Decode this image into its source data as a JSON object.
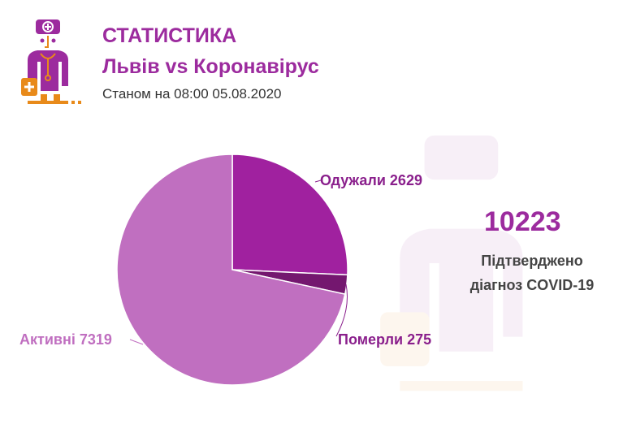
{
  "header": {
    "title": "СТАТИСТИКА",
    "subtitle": "Львів vs Коронавірус",
    "date": "Станом на 08:00 05.08.2020"
  },
  "summary": {
    "total": "10223",
    "caption_line1": "Підтверджено",
    "caption_line2": "діагноз COVID-19"
  },
  "chart_data": {
    "type": "pie",
    "title": "",
    "start": "top, clockwise",
    "slices": [
      {
        "name": "Одужали",
        "value": 2629,
        "label": "Одужали 2629",
        "color": "#a0219f"
      },
      {
        "name": "Померли",
        "value": 275,
        "label": "Померли 275",
        "color": "#74176f"
      },
      {
        "name": "Активні",
        "value": 7319,
        "label": "Активні 7319",
        "color": "#c06fc0"
      }
    ]
  },
  "colors": {
    "accent": "#9c2b9e",
    "orange": "#e88a1a"
  }
}
